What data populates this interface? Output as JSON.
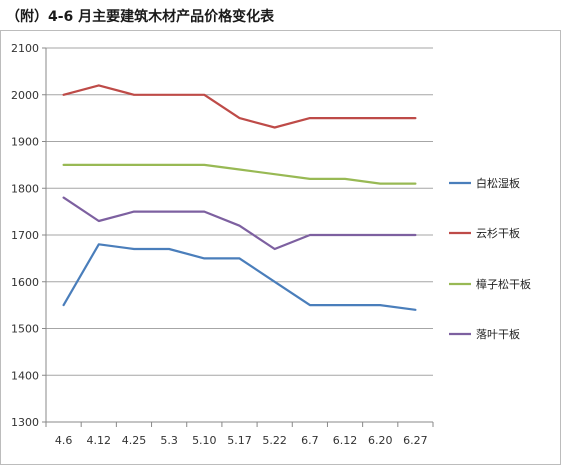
{
  "title": "（附）4-6 月主要建筑木材产品价格变化表",
  "chart_data": {
    "type": "line",
    "categories": [
      "4.6",
      "4.12",
      "4.25",
      "5.3",
      "5.10",
      "5.17",
      "5.22",
      "6.7",
      "6.12",
      "6.20",
      "6.27"
    ],
    "ylim": [
      1300,
      2100
    ],
    "yticks": [
      1300,
      1400,
      1500,
      1600,
      1700,
      1800,
      1900,
      2000,
      2100
    ],
    "grid": true,
    "legend_position": "right",
    "series": [
      {
        "name": "白松湿板",
        "color": "#4a7ebb",
        "values": [
          1550,
          1680,
          1670,
          1670,
          1650,
          1650,
          1600,
          1550,
          1550,
          1550,
          1540
        ]
      },
      {
        "name": "云杉干板",
        "color": "#be4b48",
        "values": [
          2000,
          2020,
          2000,
          2000,
          2000,
          1950,
          1930,
          1950,
          1950,
          1950,
          1950
        ]
      },
      {
        "name": "樟子松干板",
        "color": "#98b954",
        "values": [
          1850,
          1850,
          1850,
          1850,
          1850,
          1840,
          1830,
          1820,
          1820,
          1810,
          1810
        ]
      },
      {
        "name": "落叶干板",
        "color": "#7d60a0",
        "values": [
          1780,
          1730,
          1750,
          1750,
          1750,
          1720,
          1670,
          1700,
          1700,
          1700,
          1700
        ]
      }
    ]
  }
}
